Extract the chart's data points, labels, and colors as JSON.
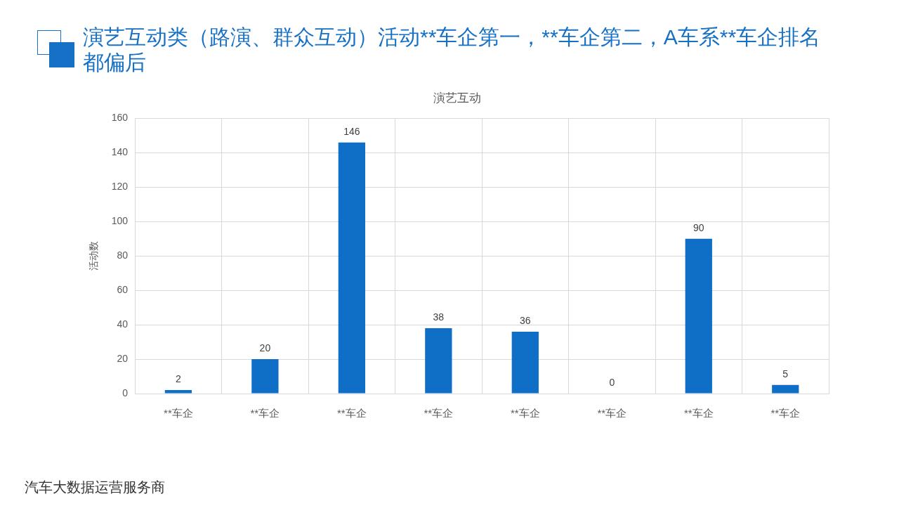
{
  "chart_data": {
    "type": "bar",
    "title": "演艺互动类（路演、群众互动）活动**车企第一，**车企第二，A车系**车企排名都偏后",
    "subtitle": "演艺互动",
    "ylabel": "活动数",
    "categories": [
      "**车企",
      "**车企",
      "**车企",
      "**车企",
      "**车企",
      "**车企",
      "**车企",
      "**车企"
    ],
    "values": [
      2,
      20,
      146,
      38,
      36,
      0,
      90,
      5
    ],
    "color": "#0f6fc6",
    "ylim": [
      0,
      160
    ],
    "yticks": [
      0,
      20,
      40,
      60,
      80,
      100,
      120,
      140,
      160
    ],
    "grid": true,
    "legend": false,
    "data_labels": true,
    "annotations": [
      "汽车大数据运营服务商"
    ]
  }
}
